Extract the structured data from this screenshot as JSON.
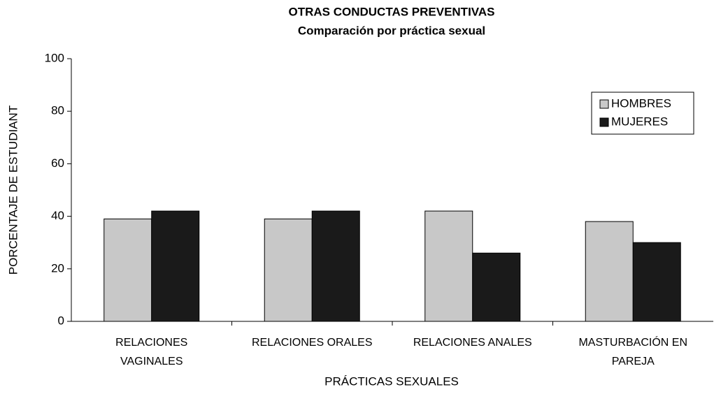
{
  "chart_data": {
    "type": "bar",
    "title": "OTRAS CONDUCTAS PREVENTIVAS",
    "subtitle": "Comparación por práctica sexual",
    "x_label": "PRÁCTICAS SEXUALES",
    "y_label": "PORCENTAJE DE ESTUDIANT",
    "categories": [
      "RELACIONES VAGINALES",
      "RELACIONES ORALES",
      "RELACIONES ANALES",
      "MASTURBACIÓN EN PAREJA"
    ],
    "series": [
      {
        "name": "HOMBRES",
        "color": "#c8c8c8",
        "values": [
          39,
          39,
          42,
          38
        ]
      },
      {
        "name": "MUJERES",
        "color": "#1a1a1a",
        "values": [
          42,
          42,
          26,
          30
        ]
      }
    ],
    "ylim": [
      0,
      100
    ],
    "yticks": [
      0,
      20,
      40,
      60,
      80,
      100
    ],
    "grid": false,
    "legend": "upper right"
  }
}
